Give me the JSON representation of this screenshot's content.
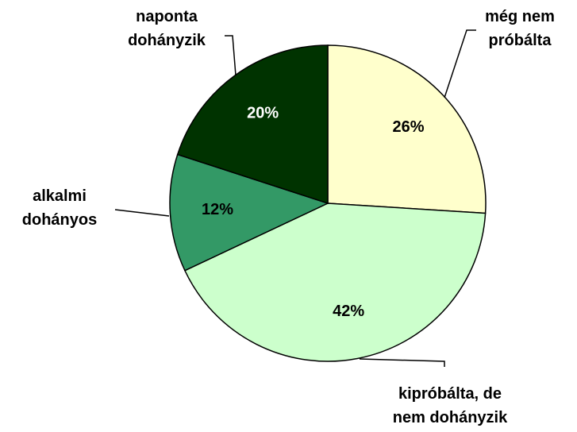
{
  "chart_data": {
    "type": "pie",
    "categories": [
      "még nem\npróbálta",
      "kipróbálta, de\nnem dohányzik",
      "alkalmi\ndohányos",
      "naponta\ndohányzik"
    ],
    "values": [
      26,
      42,
      12,
      20
    ],
    "value_labels": [
      "26%",
      "42%",
      "12%",
      "20%"
    ],
    "colors": [
      "#ffffcc",
      "#ccffcc",
      "#339966",
      "#003300"
    ],
    "label_colors": [
      "#000000",
      "#000000",
      "#000000",
      "#ffffff"
    ]
  }
}
